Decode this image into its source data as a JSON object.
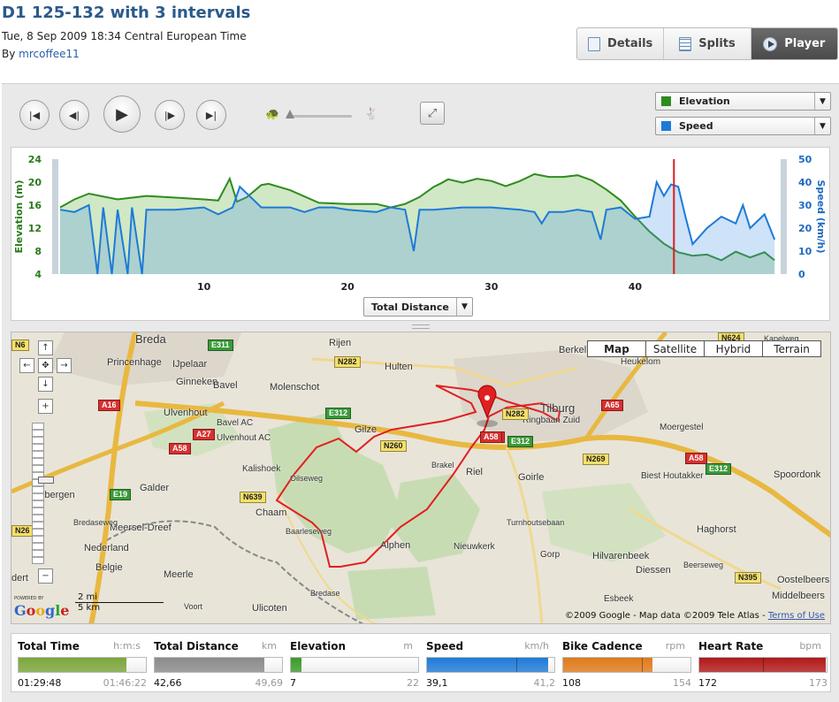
{
  "header": {
    "title": "D1 125-132 with 3 intervals",
    "date": "Tue, 8 Sep 2009 18:34 Central European Time",
    "by_label": "By",
    "author": "mrcoffee11"
  },
  "tabs": [
    {
      "label": "Details",
      "icon": "document-icon"
    },
    {
      "label": "Splits",
      "icon": "table-icon"
    },
    {
      "label": "Player",
      "icon": "play-icon",
      "active": true
    }
  ],
  "player": {
    "controls": [
      "skip-to-start",
      "step-back",
      "play",
      "step-forward",
      "skip-to-end"
    ],
    "speed_slider": {
      "value": 0.05
    }
  },
  "selectors": {
    "primary": {
      "label": "Elevation",
      "color": "#2e8b1e"
    },
    "secondary": {
      "label": "Speed",
      "color": "#1e7ad8"
    }
  },
  "x_axis_selector": {
    "label": "Total Distance"
  },
  "chart_data": {
    "type": "area",
    "ylabel": "Elevation (m)",
    "ylabel2": "Speed (km/h)",
    "xlim": [
      0,
      50
    ],
    "ylim": [
      4,
      24
    ],
    "ylim2": [
      0,
      50
    ],
    "yticks": [
      4,
      8,
      12,
      16,
      20,
      24
    ],
    "y2ticks": [
      0,
      10,
      20,
      30,
      40,
      50
    ],
    "xticks": [
      10,
      20,
      30,
      40
    ],
    "cursor_x": 42.7,
    "series": [
      {
        "name": "Elevation",
        "axis": "left",
        "color": "#2e8b1e",
        "x": [
          0,
          1,
          2,
          4,
          6,
          8,
          10,
          11,
          11.8,
          12.3,
          13,
          14,
          14.5,
          16,
          18,
          20,
          22,
          23,
          24,
          25,
          26,
          26.5,
          27,
          28,
          29,
          30,
          31,
          32,
          33,
          34,
          35,
          36,
          37,
          38,
          39,
          40,
          41,
          42,
          43,
          44,
          45,
          46,
          47,
          48,
          49,
          49.7
        ],
        "values": [
          15.6,
          17,
          18,
          17,
          17.6,
          17.3,
          17,
          16.8,
          20.6,
          16.6,
          17.4,
          19.5,
          19.7,
          18.6,
          16.4,
          16.2,
          16.2,
          15.6,
          16.2,
          17.4,
          19.2,
          19.8,
          20.5,
          19.9,
          20.6,
          20.2,
          19.3,
          20.2,
          21.4,
          20.9,
          20.9,
          21.2,
          20.3,
          18.7,
          16.8,
          14,
          11.4,
          9.3,
          7.8,
          7.2,
          7.4,
          6.4,
          7.9,
          6.9,
          7.8,
          6.4
        ]
      },
      {
        "name": "Speed",
        "axis": "right",
        "color": "#1e7ad8",
        "x": [
          0,
          1,
          2,
          2.6,
          3,
          3.6,
          4,
          4.7,
          5,
          5.7,
          6,
          8,
          10,
          11,
          12,
          12.5,
          14,
          16,
          17,
          18,
          19,
          20,
          22,
          23,
          24,
          24.6,
          25,
          26,
          28,
          30,
          32,
          33,
          33.5,
          34,
          35,
          36,
          37,
          37.6,
          38,
          39,
          40,
          41,
          41.5,
          42,
          42.5,
          43,
          43.5,
          44,
          45,
          46,
          47,
          47.5,
          48,
          49,
          49.7
        ],
        "values": [
          28,
          27,
          30,
          0,
          29,
          0,
          28,
          0,
          29,
          0,
          28,
          28,
          29,
          26,
          29,
          38,
          29,
          29,
          27,
          29,
          29,
          28,
          27,
          29,
          28,
          10,
          28,
          28,
          29,
          29,
          28,
          27,
          22,
          27,
          27,
          28,
          27,
          15,
          28,
          29,
          24,
          25,
          40,
          34,
          39,
          38,
          25,
          13,
          20,
          25,
          22,
          30,
          20,
          26,
          15
        ]
      }
    ]
  },
  "map": {
    "types": [
      {
        "label": "Map",
        "active": true
      },
      {
        "label": "Satellite"
      },
      {
        "label": "Hybrid"
      },
      {
        "label": "Terrain"
      }
    ],
    "places": [
      "Breda",
      "Princenhage",
      "IJpelaar",
      "Ginneken",
      "Molenschot",
      "Rijen",
      "Hulten",
      "Berkel",
      "Heukelom",
      "Kapelweg",
      "Tilburg",
      "Bavel",
      "Ulvenhout",
      "Bavel AC",
      "Ulvenhout AC",
      "Gilze",
      "Moergestel",
      "Kalishoek",
      "Galder",
      "Riel",
      "Goirle",
      "Biest Houtakker",
      "Spoordonk",
      "Chaam",
      "Meersel-Dreef",
      "Nederland",
      "Belgie",
      "Haghorst",
      "Alphen",
      "Nieuwkerk",
      "Gorp",
      "Hilvarenbeek",
      "Oostelbeers",
      "Meerle",
      "Diessen",
      "Middelbeers",
      "Esbeek",
      "Ulicoten",
      "Ebergen",
      "Ringbaan Zuid",
      "Turnhoutsebaan",
      "Bredaseweg",
      "Baarleseweg",
      "Beerseweg",
      "Brakel",
      "Oilseweg",
      "Voort",
      "Bredase",
      "dert"
    ],
    "roads": [
      "N6",
      "E311",
      "N282",
      "A16",
      "A27",
      "A58",
      "E312",
      "N260",
      "E312",
      "N639",
      "E19",
      "N26",
      "A58",
      "A65",
      "N624",
      "N269",
      "A58",
      "E312",
      "N395",
      "N282",
      "A58"
    ],
    "scale": {
      "mi": "2 mi",
      "km": "5 km"
    },
    "powered_by": "POWERED BY",
    "logo": "Google",
    "copyright": "©2009 Google - Map data ©2009  Tele Atlas - ",
    "terms": "Terms of Use"
  },
  "stats": [
    {
      "label": "Total Time",
      "unit": "h:m:s",
      "current": "01:29:48",
      "max": "01:46:22",
      "fraction": 0.845,
      "color": "#7aa63a",
      "marker": null
    },
    {
      "label": "Total Distance",
      "unit": "km",
      "current": "42,66",
      "max": "49,69",
      "fraction": 0.859,
      "color": "#8a8a8a",
      "marker": null
    },
    {
      "label": "Elevation",
      "unit": "m",
      "current": "7",
      "max": "22",
      "fraction": 0.08,
      "color": "#3a9a2a",
      "marker": null
    },
    {
      "label": "Speed",
      "unit": "km/h",
      "current": "39,1",
      "max": "41,2",
      "fraction": 0.949,
      "color": "#1e7ad8",
      "marker": 0.7
    },
    {
      "label": "Bike Cadence",
      "unit": "rpm",
      "current": "108",
      "max": "154",
      "fraction": 0.701,
      "color": "#e07a1a",
      "marker": 0.62
    },
    {
      "label": "Heart Rate",
      "unit": "bpm",
      "current": "172",
      "max": "173",
      "fraction": 0.994,
      "color": "#b01818",
      "marker": 0.5
    }
  ]
}
